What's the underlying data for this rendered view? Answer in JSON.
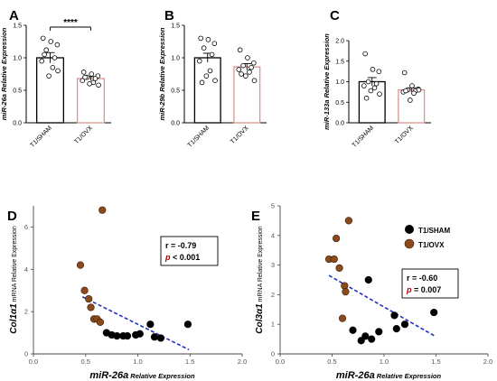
{
  "panels": {
    "A": "A",
    "B": "B",
    "C": "C",
    "D": "D",
    "E": "E"
  },
  "colors": {
    "sham": "#000000",
    "ovx": "#8b4a1c",
    "ovx_bar_edge": "#d9968a",
    "sham_bar_edge": "#000000",
    "fit_line": "#1f2fc0"
  },
  "legend": {
    "sham": "T1/SHAM",
    "ovx": "T1/OVX"
  },
  "chart_data": [
    {
      "id": "A",
      "type": "bar",
      "categories": [
        "T1/SHAM",
        "T1/OVX"
      ],
      "ylabel": "miR-26a Relative Expression",
      "ylim": [
        0.0,
        1.5
      ],
      "yticks": [
        "0.0",
        "0.5",
        "1.0",
        "1.5"
      ],
      "significance": "****",
      "series": [
        {
          "name": "T1/SHAM",
          "mean": 1.0,
          "sem": 0.08,
          "points": [
            1.3,
            1.25,
            1.2,
            1.12,
            1.0,
            0.95,
            0.85,
            0.72,
            0.8,
            1.05
          ]
        },
        {
          "name": "T1/OVX",
          "mean": 0.68,
          "sem": 0.03,
          "points": [
            0.78,
            0.75,
            0.72,
            0.7,
            0.68,
            0.65,
            0.62,
            0.6,
            0.58,
            0.7
          ]
        }
      ]
    },
    {
      "id": "B",
      "type": "bar",
      "categories": [
        "T1/SHAM",
        "T1/OVX"
      ],
      "ylabel": "miR-29b Relative Expression",
      "ylim": [
        0.0,
        1.5
      ],
      "yticks": [
        "0.0",
        "0.5",
        "1.0",
        "1.5"
      ],
      "series": [
        {
          "name": "T1/SHAM",
          "mean": 1.0,
          "sem": 0.07,
          "points": [
            1.3,
            1.28,
            1.22,
            1.15,
            1.05,
            0.95,
            0.8,
            0.72,
            0.65,
            0.62
          ]
        },
        {
          "name": "T1/OVX",
          "mean": 0.86,
          "sem": 0.05,
          "points": [
            1.12,
            1.0,
            0.92,
            0.88,
            0.85,
            0.82,
            0.78,
            0.72,
            0.65,
            0.75
          ]
        }
      ]
    },
    {
      "id": "C",
      "type": "bar",
      "categories": [
        "T1/SHAM",
        "T1/OVX"
      ],
      "ylabel": "miR-133a Relative Expression",
      "ylim": [
        0.0,
        2.0
      ],
      "yticks": [
        "0.0",
        "0.5",
        "1.0",
        "1.5",
        "2.0"
      ],
      "series": [
        {
          "name": "T1/SHAM",
          "mean": 1.0,
          "sem": 0.1,
          "points": [
            1.68,
            1.3,
            1.25,
            1.0,
            0.95,
            0.9,
            0.85,
            0.78,
            0.7,
            0.6
          ]
        },
        {
          "name": "T1/OVX",
          "mean": 0.8,
          "sem": 0.05,
          "points": [
            1.22,
            0.9,
            0.82,
            0.8,
            0.78,
            0.75,
            0.72,
            0.55,
            0.8,
            0.78
          ]
        }
      ]
    },
    {
      "id": "D",
      "type": "scatter",
      "xlabel": "miR-26a",
      "xlabel_suffix": "Relative Expression",
      "ylabel": "Col1α1",
      "ylabel_suffix": "mRNA Relative Expression",
      "xlim": [
        0.0,
        2.0
      ],
      "ylim": [
        0,
        7
      ],
      "xticks": [
        "0.0",
        "0.5",
        "1.0",
        "1.5",
        "2.0"
      ],
      "yticks": [
        "0",
        "2",
        "4",
        "6"
      ],
      "stats": {
        "r_label": "r = -0.79",
        "p_symbol": "p",
        "p_text": "< 0.001"
      },
      "fit": {
        "x": [
          0.47,
          1.49
        ],
        "y": [
          2.7,
          0.2
        ]
      },
      "series": [
        {
          "name": "T1/SHAM",
          "x": [
            0.7,
            0.75,
            0.8,
            0.86,
            0.9,
            0.98,
            1.02,
            1.12,
            1.16,
            1.22,
            1.48
          ],
          "y": [
            1.0,
            0.9,
            0.85,
            0.85,
            0.85,
            0.9,
            0.95,
            1.4,
            0.8,
            0.75,
            1.4
          ]
        },
        {
          "name": "T1/OVX",
          "x": [
            0.45,
            0.49,
            0.53,
            0.55,
            0.58,
            0.61,
            0.64,
            0.66
          ],
          "y": [
            4.2,
            3.0,
            2.6,
            2.2,
            1.65,
            1.65,
            1.5,
            6.8
          ]
        }
      ]
    },
    {
      "id": "E",
      "type": "scatter",
      "xlabel": "miR-26a",
      "xlabel_suffix": "Relative Expression",
      "ylabel": "Col3α1",
      "ylabel_suffix": "mRNA Relative Expression",
      "xlim": [
        0.0,
        2.0
      ],
      "ylim": [
        0,
        5
      ],
      "xticks": [
        "0.0",
        "0.5",
        "1.0",
        "1.5",
        "2.0"
      ],
      "yticks": [
        "0",
        "1",
        "2",
        "3",
        "4",
        "5"
      ],
      "stats": {
        "r_label": "r = -0.60",
        "p_symbol": "p",
        "p_text": "= 0.007"
      },
      "fit": {
        "x": [
          0.47,
          1.49
        ],
        "y": [
          2.65,
          0.6
        ]
      },
      "series": [
        {
          "name": "T1/SHAM",
          "x": [
            0.7,
            0.78,
            0.82,
            0.85,
            0.88,
            0.95,
            1.1,
            1.12,
            1.2,
            1.48
          ],
          "y": [
            0.8,
            0.45,
            0.6,
            2.5,
            0.5,
            0.75,
            1.3,
            0.85,
            1.0,
            1.4
          ]
        },
        {
          "name": "T1/OVX",
          "x": [
            0.47,
            0.52,
            0.54,
            0.57,
            0.6,
            0.62,
            0.63,
            0.66
          ],
          "y": [
            3.2,
            3.2,
            3.9,
            2.9,
            1.2,
            2.3,
            2.1,
            4.5
          ]
        }
      ]
    }
  ]
}
